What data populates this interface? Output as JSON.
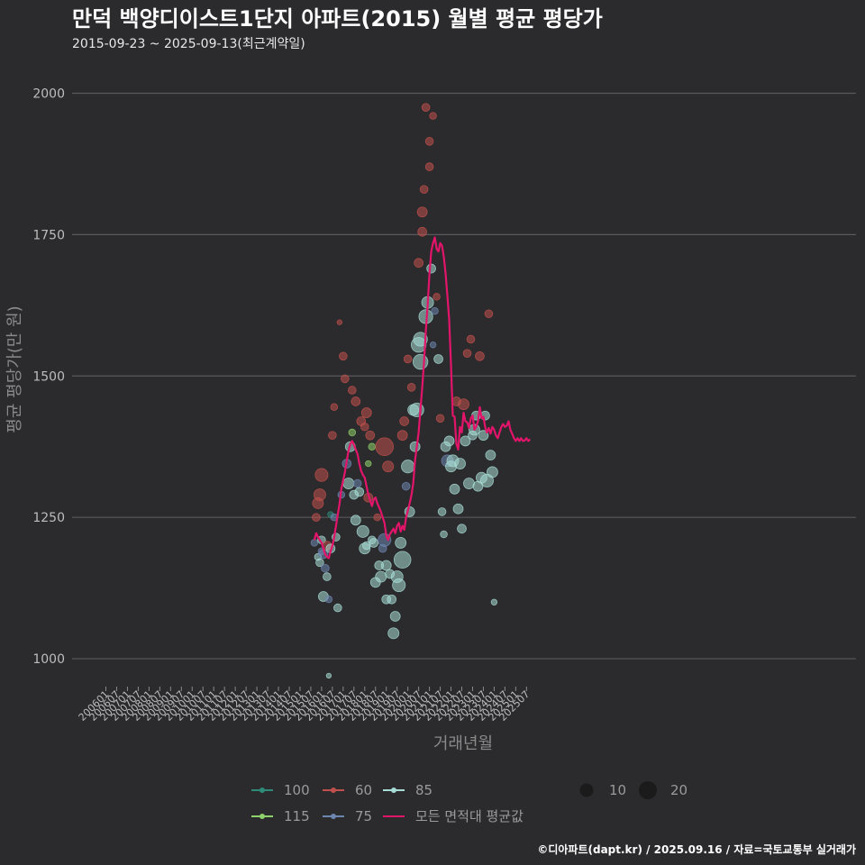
{
  "chart_data": {
    "type": "scatter",
    "title": "만덕 백양디이스트1단지 아파트(2015) 월별 평균 평당가",
    "subtitle": "2015-09-23 ~ 2025-09-13(최근계약일)",
    "xlabel": "거래년월",
    "ylabel": "평균 평당가(만 원)",
    "ylim": [
      930,
      2090
    ],
    "yticks": [
      1000,
      1250,
      1500,
      1750,
      2000
    ],
    "x_tick_labels": [
      "200601",
      "200607",
      "200701",
      "200707",
      "200801",
      "200807",
      "200901",
      "200907",
      "201001",
      "201007",
      "201101",
      "201107",
      "201201",
      "201207",
      "201301",
      "201307",
      "201401",
      "201407",
      "201501",
      "201507",
      "201601",
      "201607",
      "201701",
      "201707",
      "201801",
      "201807",
      "201901",
      "201907",
      "202001",
      "202007",
      "202101",
      "202107",
      "202201",
      "202207",
      "202301",
      "202307",
      "202401",
      "202407",
      "202501",
      "202507"
    ],
    "caption": "©디아파트(dapt.kr) / 2025.09.16 / 자료=국토교통부 실거래가",
    "legend": {
      "areas": [
        {
          "label": "100",
          "color": "#2e8b7a"
        },
        {
          "label": "115",
          "color": "#8fd16a"
        },
        {
          "label": "60",
          "color": "#c0504d"
        },
        {
          "label": "75",
          "color": "#6d86b0"
        },
        {
          "label": "85",
          "color": "#a8dcd6"
        },
        {
          "label": "모든 면적대 평균값",
          "color": "#e3156b"
        }
      ],
      "sizes": [
        {
          "label": "10",
          "value": 10
        },
        {
          "label": "20",
          "value": 20
        }
      ]
    },
    "series_colors": {
      "60": "#c0504d",
      "75": "#6d86b0",
      "85": "#a8dcd6",
      "100": "#2e8b7a",
      "115": "#8fd16a",
      "avg": "#e3156b"
    },
    "average_line": {
      "name": "모든 면적대 평균값",
      "x": [
        "201509",
        "201510",
        "201511",
        "201512",
        "201601",
        "201602",
        "201603",
        "201604",
        "201605",
        "201606",
        "201607",
        "201608",
        "201609",
        "201610",
        "201611",
        "201612",
        "201701",
        "201702",
        "201703",
        "201704",
        "201705",
        "201706",
        "201707",
        "201708",
        "201709",
        "201710",
        "201711",
        "201712",
        "201801",
        "201802",
        "201803",
        "201804",
        "201805",
        "201806",
        "201807",
        "201808",
        "201809",
        "201810",
        "201811",
        "201812",
        "201901",
        "201902",
        "201903",
        "201904",
        "201905",
        "201906",
        "201907",
        "201908",
        "201909",
        "201910",
        "201911",
        "201912",
        "202001",
        "202002",
        "202003",
        "202004",
        "202005",
        "202006",
        "202007",
        "202008",
        "202009",
        "202010",
        "202011",
        "202012",
        "202101",
        "202102",
        "202103",
        "202104",
        "202105",
        "202106",
        "202107",
        "202108",
        "202109",
        "202110",
        "202111",
        "202112",
        "202201",
        "202202",
        "202203",
        "202204",
        "202205",
        "202206",
        "202207",
        "202208",
        "202209",
        "202210",
        "202211",
        "202212",
        "202301",
        "202302",
        "202303",
        "202304",
        "202305",
        "202306",
        "202307",
        "202308",
        "202309",
        "202310",
        "202311",
        "202312",
        "202401",
        "202402",
        "202403",
        "202404",
        "202405",
        "202406",
        "202407",
        "202408",
        "202409",
        "202410",
        "202411",
        "202412",
        "202501",
        "202502",
        "202503",
        "202504",
        "202505",
        "202506",
        "202507",
        "202508",
        "202509"
      ],
      "y": [
        1210,
        1222,
        1215,
        1210,
        1205,
        1195,
        1185,
        1180,
        1178,
        1190,
        1200,
        1215,
        1235,
        1255,
        1275,
        1300,
        1315,
        1330,
        1350,
        1368,
        1380,
        1385,
        1378,
        1370,
        1362,
        1345,
        1332,
        1325,
        1320,
        1305,
        1290,
        1280,
        1270,
        1282,
        1285,
        1275,
        1268,
        1260,
        1250,
        1240,
        1218,
        1210,
        1220,
        1225,
        1230,
        1222,
        1235,
        1240,
        1225,
        1235,
        1228,
        1250,
        1262,
        1275,
        1290,
        1310,
        1350,
        1375,
        1400,
        1440,
        1480,
        1525,
        1580,
        1625,
        1680,
        1720,
        1735,
        1745,
        1725,
        1720,
        1735,
        1730,
        1710,
        1680,
        1640,
        1600,
        1520,
        1430,
        1428,
        1380,
        1370,
        1410,
        1400,
        1435,
        1420,
        1418,
        1408,
        1425,
        1430,
        1405,
        1410,
        1420,
        1445,
        1425,
        1428,
        1410,
        1400,
        1408,
        1398,
        1410,
        1405,
        1395,
        1390,
        1400,
        1410,
        1415,
        1410,
        1412,
        1420,
        1405,
        1398,
        1390,
        1385,
        1390,
        1385,
        1390,
        1385,
        1386,
        1390,
        1385,
        1388
      ]
    },
    "points": [
      {
        "x": "201509",
        "y": 1205,
        "area": "75",
        "n": 3
      },
      {
        "x": "201510",
        "y": 1250,
        "area": "60",
        "n": 4
      },
      {
        "x": "201511",
        "y": 1275,
        "area": "60",
        "n": 7
      },
      {
        "x": "201511",
        "y": 1180,
        "area": "85",
        "n": 3
      },
      {
        "x": "201512",
        "y": 1290,
        "area": "60",
        "n": 8
      },
      {
        "x": "201512",
        "y": 1170,
        "area": "85",
        "n": 4
      },
      {
        "x": "201601",
        "y": 1325,
        "area": "60",
        "n": 9
      },
      {
        "x": "201601",
        "y": 1190,
        "area": "75",
        "n": 3
      },
      {
        "x": "201601",
        "y": 1210,
        "area": "85",
        "n": 4
      },
      {
        "x": "201602",
        "y": 1110,
        "area": "85",
        "n": 6
      },
      {
        "x": "201602",
        "y": 1185,
        "area": "75",
        "n": 5
      },
      {
        "x": "201603",
        "y": 1160,
        "area": "75",
        "n": 4
      },
      {
        "x": "201604",
        "y": 1200,
        "area": "60",
        "n": 5
      },
      {
        "x": "201604",
        "y": 1145,
        "area": "85",
        "n": 4
      },
      {
        "x": "201605",
        "y": 1105,
        "area": "75",
        "n": 3
      },
      {
        "x": "201605",
        "y": 970,
        "area": "85",
        "n": 1
      },
      {
        "x": "201606",
        "y": 1195,
        "area": "85",
        "n": 5
      },
      {
        "x": "201606",
        "y": 1255,
        "area": "100",
        "n": 2
      },
      {
        "x": "201607",
        "y": 1395,
        "area": "60",
        "n": 4
      },
      {
        "x": "201608",
        "y": 1445,
        "area": "60",
        "n": 3
      },
      {
        "x": "201608",
        "y": 1250,
        "area": "75",
        "n": 3
      },
      {
        "x": "201609",
        "y": 1215,
        "area": "85",
        "n": 4
      },
      {
        "x": "201610",
        "y": 1090,
        "area": "85",
        "n": 4
      },
      {
        "x": "201611",
        "y": 1595,
        "area": "60",
        "n": 1
      },
      {
        "x": "201612",
        "y": 1290,
        "area": "75",
        "n": 3
      },
      {
        "x": "201701",
        "y": 1535,
        "area": "60",
        "n": 4
      },
      {
        "x": "201702",
        "y": 1495,
        "area": "60",
        "n": 4
      },
      {
        "x": "201703",
        "y": 1345,
        "area": "75",
        "n": 5
      },
      {
        "x": "201704",
        "y": 1310,
        "area": "85",
        "n": 7
      },
      {
        "x": "201705",
        "y": 1375,
        "area": "85",
        "n": 6
      },
      {
        "x": "201706",
        "y": 1475,
        "area": "60",
        "n": 4
      },
      {
        "x": "201706",
        "y": 1400,
        "area": "115",
        "n": 3
      },
      {
        "x": "201707",
        "y": 1290,
        "area": "85",
        "n": 5
      },
      {
        "x": "201708",
        "y": 1245,
        "area": "85",
        "n": 6
      },
      {
        "x": "201708",
        "y": 1455,
        "area": "60",
        "n": 5
      },
      {
        "x": "201709",
        "y": 1310,
        "area": "75",
        "n": 4
      },
      {
        "x": "201710",
        "y": 1295,
        "area": "85",
        "n": 5
      },
      {
        "x": "201711",
        "y": 1420,
        "area": "60",
        "n": 5
      },
      {
        "x": "201712",
        "y": 1225,
        "area": "85",
        "n": 8
      },
      {
        "x": "201801",
        "y": 1195,
        "area": "85",
        "n": 7
      },
      {
        "x": "201801",
        "y": 1410,
        "area": "60",
        "n": 4
      },
      {
        "x": "201802",
        "y": 1435,
        "area": "60",
        "n": 6
      },
      {
        "x": "201802",
        "y": 1200,
        "area": "85",
        "n": 4
      },
      {
        "x": "201803",
        "y": 1285,
        "area": "60",
        "n": 5
      },
      {
        "x": "201803",
        "y": 1345,
        "area": "115",
        "n": 2
      },
      {
        "x": "201804",
        "y": 1395,
        "area": "60",
        "n": 5
      },
      {
        "x": "201805",
        "y": 1375,
        "area": "115",
        "n": 3
      },
      {
        "x": "201805",
        "y": 1210,
        "area": "85",
        "n": 4
      },
      {
        "x": "201806",
        "y": 1205,
        "area": "85",
        "n": 5
      },
      {
        "x": "201807",
        "y": 1135,
        "area": "85",
        "n": 6
      },
      {
        "x": "201808",
        "y": 1250,
        "area": "60",
        "n": 3
      },
      {
        "x": "201809",
        "y": 1165,
        "area": "85",
        "n": 5
      },
      {
        "x": "201810",
        "y": 1145,
        "area": "85",
        "n": 7
      },
      {
        "x": "201811",
        "y": 1195,
        "area": "75",
        "n": 4
      },
      {
        "x": "201812",
        "y": 1375,
        "area": "60",
        "n": 14
      },
      {
        "x": "201812",
        "y": 1210,
        "area": "75",
        "n": 9
      },
      {
        "x": "201901",
        "y": 1105,
        "area": "85",
        "n": 5
      },
      {
        "x": "201901",
        "y": 1165,
        "area": "85",
        "n": 6
      },
      {
        "x": "201902",
        "y": 1340,
        "area": "60",
        "n": 7
      },
      {
        "x": "201903",
        "y": 1150,
        "area": "85",
        "n": 5
      },
      {
        "x": "201904",
        "y": 1105,
        "area": "85",
        "n": 5
      },
      {
        "x": "201905",
        "y": 1045,
        "area": "85",
        "n": 7
      },
      {
        "x": "201906",
        "y": 1075,
        "area": "85",
        "n": 6
      },
      {
        "x": "201907",
        "y": 1145,
        "area": "85",
        "n": 8
      },
      {
        "x": "201908",
        "y": 1130,
        "area": "85",
        "n": 9
      },
      {
        "x": "201909",
        "y": 1205,
        "area": "85",
        "n": 7
      },
      {
        "x": "201910",
        "y": 1395,
        "area": "60",
        "n": 6
      },
      {
        "x": "201910",
        "y": 1175,
        "area": "85",
        "n": 13
      },
      {
        "x": "201911",
        "y": 1420,
        "area": "60",
        "n": 5
      },
      {
        "x": "201912",
        "y": 1305,
        "area": "75",
        "n": 4
      },
      {
        "x": "202001",
        "y": 1340,
        "area": "85",
        "n": 9
      },
      {
        "x": "202001",
        "y": 1530,
        "area": "60",
        "n": 4
      },
      {
        "x": "202002",
        "y": 1260,
        "area": "85",
        "n": 6
      },
      {
        "x": "202003",
        "y": 1480,
        "area": "60",
        "n": 4
      },
      {
        "x": "202004",
        "y": 1440,
        "area": "85",
        "n": 7
      },
      {
        "x": "202005",
        "y": 1375,
        "area": "85",
        "n": 6
      },
      {
        "x": "202006",
        "y": 1440,
        "area": "85",
        "n": 10
      },
      {
        "x": "202007",
        "y": 1555,
        "area": "85",
        "n": 11
      },
      {
        "x": "202007",
        "y": 1700,
        "area": "60",
        "n": 5
      },
      {
        "x": "202008",
        "y": 1565,
        "area": "85",
        "n": 10
      },
      {
        "x": "202008",
        "y": 1525,
        "area": "85",
        "n": 11
      },
      {
        "x": "202009",
        "y": 1790,
        "area": "60",
        "n": 6
      },
      {
        "x": "202009",
        "y": 1755,
        "area": "60",
        "n": 5
      },
      {
        "x": "202010",
        "y": 1830,
        "area": "60",
        "n": 4
      },
      {
        "x": "202011",
        "y": 1975,
        "area": "60",
        "n": 4
      },
      {
        "x": "202011",
        "y": 1605,
        "area": "85",
        "n": 10
      },
      {
        "x": "202012",
        "y": 1630,
        "area": "85",
        "n": 8
      },
      {
        "x": "202101",
        "y": 1915,
        "area": "60",
        "n": 4
      },
      {
        "x": "202101",
        "y": 1870,
        "area": "60",
        "n": 4
      },
      {
        "x": "202102",
        "y": 1690,
        "area": "85",
        "n": 5
      },
      {
        "x": "202103",
        "y": 1960,
        "area": "60",
        "n": 3
      },
      {
        "x": "202103",
        "y": 1555,
        "area": "75",
        "n": 2
      },
      {
        "x": "202104",
        "y": 1615,
        "area": "75",
        "n": 3
      },
      {
        "x": "202105",
        "y": 1640,
        "area": "60",
        "n": 3
      },
      {
        "x": "202106",
        "y": 1530,
        "area": "85",
        "n": 5
      },
      {
        "x": "202107",
        "y": 1425,
        "area": "60",
        "n": 4
      },
      {
        "x": "202108",
        "y": 1260,
        "area": "85",
        "n": 4
      },
      {
        "x": "202109",
        "y": 1220,
        "area": "85",
        "n": 3
      },
      {
        "x": "202110",
        "y": 1375,
        "area": "85",
        "n": 6
      },
      {
        "x": "202111",
        "y": 1350,
        "area": "75",
        "n": 8
      },
      {
        "x": "202112",
        "y": 1385,
        "area": "85",
        "n": 6
      },
      {
        "x": "202201",
        "y": 1340,
        "area": "85",
        "n": 7
      },
      {
        "x": "202202",
        "y": 1350,
        "area": "85",
        "n": 8
      },
      {
        "x": "202203",
        "y": 1300,
        "area": "85",
        "n": 6
      },
      {
        "x": "202204",
        "y": 1455,
        "area": "60",
        "n": 5
      },
      {
        "x": "202205",
        "y": 1265,
        "area": "85",
        "n": 6
      },
      {
        "x": "202206",
        "y": 1345,
        "area": "85",
        "n": 7
      },
      {
        "x": "202207",
        "y": 1230,
        "area": "85",
        "n": 5
      },
      {
        "x": "202208",
        "y": 1450,
        "area": "60",
        "n": 7
      },
      {
        "x": "202209",
        "y": 1385,
        "area": "85",
        "n": 6
      },
      {
        "x": "202210",
        "y": 1540,
        "area": "60",
        "n": 4
      },
      {
        "x": "202211",
        "y": 1310,
        "area": "85",
        "n": 7
      },
      {
        "x": "202212",
        "y": 1565,
        "area": "60",
        "n": 4
      },
      {
        "x": "202301",
        "y": 1395,
        "area": "85",
        "n": 5
      },
      {
        "x": "202302",
        "y": 1405,
        "area": "85",
        "n": 7
      },
      {
        "x": "202303",
        "y": 1430,
        "area": "85",
        "n": 5
      },
      {
        "x": "202304",
        "y": 1305,
        "area": "85",
        "n": 6
      },
      {
        "x": "202305",
        "y": 1535,
        "area": "60",
        "n": 5
      },
      {
        "x": "202306",
        "y": 1320,
        "area": "85",
        "n": 7
      },
      {
        "x": "202307",
        "y": 1395,
        "area": "85",
        "n": 6
      },
      {
        "x": "202308",
        "y": 1430,
        "area": "85",
        "n": 5
      },
      {
        "x": "202309",
        "y": 1315,
        "area": "85",
        "n": 9
      },
      {
        "x": "202310",
        "y": 1610,
        "area": "60",
        "n": 4
      },
      {
        "x": "202311",
        "y": 1360,
        "area": "85",
        "n": 6
      },
      {
        "x": "202312",
        "y": 1330,
        "area": "85",
        "n": 7
      },
      {
        "x": "202401",
        "y": 1100,
        "area": "85",
        "n": 2
      }
    ]
  }
}
